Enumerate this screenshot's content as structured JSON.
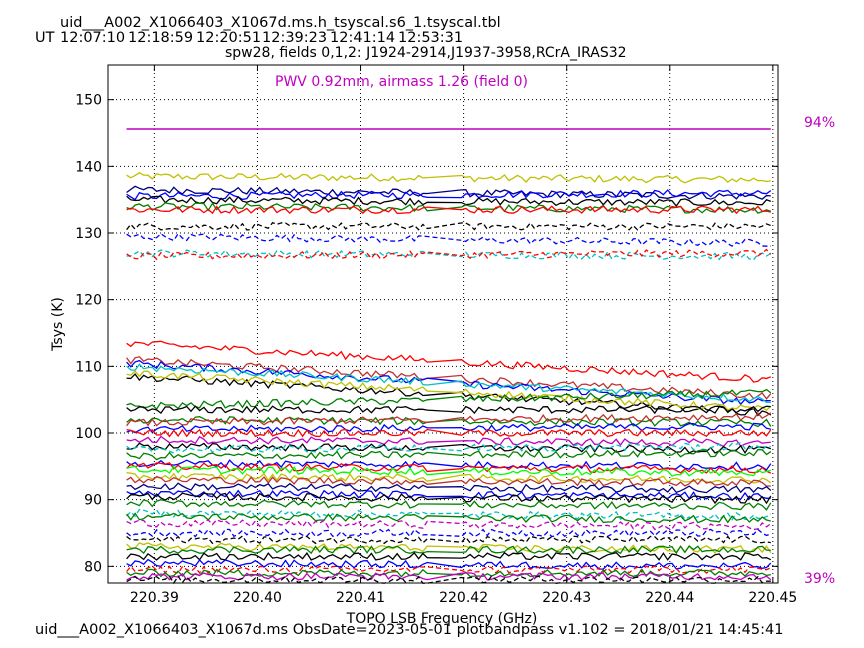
{
  "header": {
    "filename": "uid___A002_X1066403_X1067d.ms.h_tsyscal.s6_1.tsyscal.tbl",
    "ut_label": "UT",
    "times": [
      "12:07:10",
      "12:18:59",
      "12:20:51",
      "12:39:23",
      "12:41:14",
      "12:53:31"
    ],
    "subtitle": "spw28,  fields 0,1,2: J1924-2914,J1937-3958,RCrA_IRAS32"
  },
  "footer": {
    "text": "uid___A002_X1066403_X1067d.ms  ObsDate=2023-05-01   plotbandpass v1.102 = 2018/01/21 14:45:41"
  },
  "colors": {
    "magenta": "#c000c0",
    "series_palette": [
      "#ff0000",
      "#008000",
      "#000000",
      "#0000ff",
      "#c0c000",
      "#00c0c0",
      "#c000c0",
      "#00ff00",
      "#c03030"
    ]
  },
  "chart_data": {
    "type": "line",
    "xlabel": "TOPO LSB Frequency (GHz)",
    "ylabel": "Tsys (K)",
    "xlim": [
      220.3855,
      220.4505
    ],
    "ylim": [
      77.5,
      155.2
    ],
    "xticks": [
      220.39,
      220.4,
      220.41,
      220.42,
      220.43,
      220.44,
      220.45
    ],
    "xtick_labels": [
      "220.39",
      "220.40",
      "220.41",
      "220.42",
      "220.43",
      "220.44",
      "220.45"
    ],
    "yticks": [
      80,
      90,
      100,
      110,
      120,
      130,
      140,
      150
    ],
    "grid": true,
    "annotation": "PWV 0.92mm, airmass 1.26 (field 0)",
    "atm_transmission": {
      "color": "#c000c0",
      "y_value": 145.6,
      "label_top": "94%",
      "label_bottom": "39%"
    },
    "x_range": [
      220.3873,
      220.4498
    ],
    "gap_between": [
      220.4165,
      220.4198
    ],
    "series": [
      {
        "color": "#c0c000",
        "style": "solid",
        "start": 138.5,
        "end": 138.0
      },
      {
        "color": "#000080",
        "style": "solid",
        "start": 136.5,
        "end": 135.5
      },
      {
        "color": "#0000ff",
        "style": "solid",
        "start": 135.5,
        "end": 136.0
      },
      {
        "color": "#000000",
        "style": "solid",
        "start": 135.0,
        "end": 134.5
      },
      {
        "color": "#008000",
        "style": "solid",
        "start": 134.0,
        "end": 133.5
      },
      {
        "color": "#ff0000",
        "style": "solid",
        "start": 133.5,
        "end": 133.5
      },
      {
        "color": "#000000",
        "style": "dashed",
        "start": 131.0,
        "end": 131.0
      },
      {
        "color": "#0000ff",
        "style": "dashed",
        "start": 129.5,
        "end": 128.5
      },
      {
        "color": "#00c0c0",
        "style": "dashed",
        "start": 127.0,
        "end": 126.5
      },
      {
        "color": "#ff0000",
        "style": "dashed",
        "start": 126.5,
        "end": 127.0
      },
      {
        "color": "#ff0000",
        "style": "solid",
        "start": 113.5,
        "end": 108.0
      },
      {
        "color": "#c03030",
        "style": "solid",
        "start": 111.0,
        "end": 105.5
      },
      {
        "color": "#0000ff",
        "style": "solid",
        "start": 110.5,
        "end": 104.5
      },
      {
        "color": "#00c0c0",
        "style": "solid",
        "start": 110.0,
        "end": 105.0
      },
      {
        "color": "#000000",
        "style": "solid",
        "start": 108.5,
        "end": 103.0
      },
      {
        "color": "#c0c000",
        "style": "solid",
        "start": 109.0,
        "end": 103.5
      },
      {
        "color": "#008000",
        "style": "solid",
        "start": 104.0,
        "end": 106.0
      },
      {
        "color": "#000000",
        "style": "solid",
        "start": 103.5,
        "end": 103.5
      },
      {
        "color": "#008000",
        "style": "solid",
        "start": 102.0,
        "end": 101.5
      },
      {
        "color": "#c03030",
        "style": "solid",
        "start": 101.5,
        "end": 102.5
      },
      {
        "color": "#0000ff",
        "style": "solid",
        "start": 100.5,
        "end": 101.0
      },
      {
        "color": "#ff0000",
        "style": "solid",
        "start": 100.0,
        "end": 100.0
      },
      {
        "color": "#c000c0",
        "style": "solid",
        "start": 99.0,
        "end": 98.5
      },
      {
        "color": "#000000",
        "style": "solid",
        "start": 98.0,
        "end": 97.5
      },
      {
        "color": "#00c0c0",
        "style": "dashed",
        "start": 97.5,
        "end": 98.0
      },
      {
        "color": "#008000",
        "style": "solid",
        "start": 96.5,
        "end": 97.0
      },
      {
        "color": "#0000ff",
        "style": "solid",
        "start": 95.5,
        "end": 95.0
      },
      {
        "color": "#ff0000",
        "style": "solid",
        "start": 95.0,
        "end": 94.5
      },
      {
        "color": "#00ff00",
        "style": "solid",
        "start": 94.5,
        "end": 94.0
      },
      {
        "color": "#c0c000",
        "style": "solid",
        "start": 93.5,
        "end": 93.0
      },
      {
        "color": "#c03030",
        "style": "solid",
        "start": 93.0,
        "end": 92.5
      },
      {
        "color": "#000080",
        "style": "solid",
        "start": 92.0,
        "end": 91.5
      },
      {
        "color": "#0000ff",
        "style": "solid",
        "start": 91.0,
        "end": 90.5
      },
      {
        "color": "#000000",
        "style": "solid",
        "start": 90.5,
        "end": 90.0
      },
      {
        "color": "#008000",
        "style": "solid",
        "start": 89.5,
        "end": 89.0
      },
      {
        "color": "#00c0c0",
        "style": "dashed",
        "start": 88.0,
        "end": 87.5
      },
      {
        "color": "#008000",
        "style": "solid",
        "start": 87.5,
        "end": 87.0
      },
      {
        "color": "#c000c0",
        "style": "dashed",
        "start": 86.5,
        "end": 86.0
      },
      {
        "color": "#0000ff",
        "style": "dashed",
        "start": 85.0,
        "end": 85.0
      },
      {
        "color": "#000000",
        "style": "dashed",
        "start": 84.0,
        "end": 84.0
      },
      {
        "color": "#c0c000",
        "style": "solid",
        "start": 83.0,
        "end": 82.5
      },
      {
        "color": "#008000",
        "style": "solid",
        "start": 82.5,
        "end": 82.5
      },
      {
        "color": "#000000",
        "style": "solid",
        "start": 81.5,
        "end": 81.5
      },
      {
        "color": "#0000ff",
        "style": "solid",
        "start": 80.5,
        "end": 80.0
      },
      {
        "color": "#ff0000",
        "style": "dashed",
        "start": 79.5,
        "end": 79.5
      },
      {
        "color": "#008000",
        "style": "solid",
        "start": 79.0,
        "end": 79.0
      },
      {
        "color": "#c000c0",
        "style": "solid",
        "start": 78.5,
        "end": 78.5
      },
      {
        "color": "#000000",
        "style": "dashed",
        "start": 78.0,
        "end": 78.0
      }
    ]
  }
}
